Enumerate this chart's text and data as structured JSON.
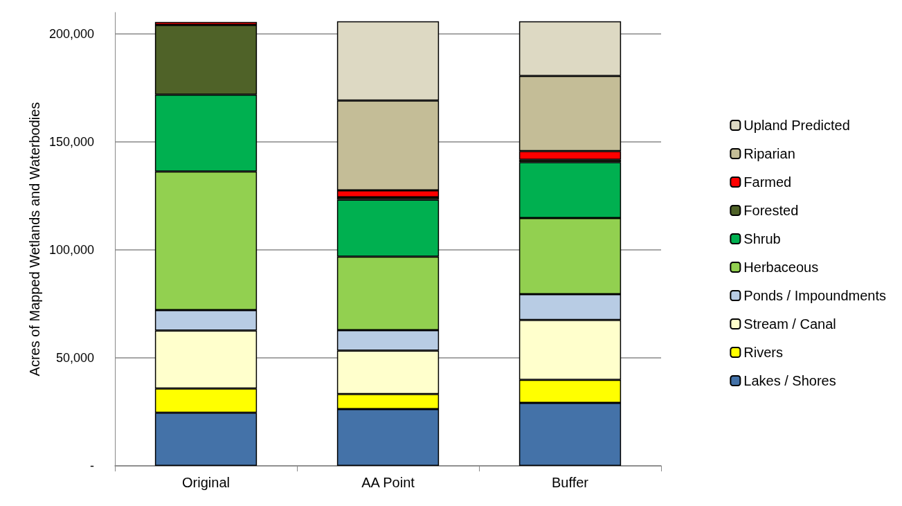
{
  "chart_data": {
    "type": "bar",
    "stacked": true,
    "ylabel": "Acres of Mapped Wetlands and Waterbodies",
    "categories": [
      "Original",
      "AA Point",
      "Buffer"
    ],
    "ylim": [
      0,
      210000
    ],
    "yticks": [
      {
        "value": 0,
        "label": "-"
      },
      {
        "value": 50000,
        "label": "50,000"
      },
      {
        "value": 100000,
        "label": "100,000"
      },
      {
        "value": 150000,
        "label": "150,000"
      },
      {
        "value": 200000,
        "label": "200,000"
      }
    ],
    "grid": "y",
    "legend": "right",
    "series": [
      {
        "name": "Lakes / Shores",
        "color": "#4472a8",
        "values": [
          24600,
          26300,
          29200
        ]
      },
      {
        "name": "Rivers",
        "color": "#ffff00",
        "values": [
          11200,
          7000,
          10600
        ]
      },
      {
        "name": "Stream / Canal",
        "color": "#ffffcc",
        "values": [
          26900,
          20100,
          27800
        ]
      },
      {
        "name": "Ponds / Impoundments",
        "color": "#b8cce4",
        "values": [
          9400,
          9400,
          11900
        ]
      },
      {
        "name": "Herbaceous",
        "color": "#92d050",
        "values": [
          64200,
          34100,
          35300
        ]
      },
      {
        "name": "Shrub",
        "color": "#00b050",
        "values": [
          35600,
          26400,
          25900
        ]
      },
      {
        "name": "Forested",
        "color": "#4f6228",
        "values": [
          32300,
          1100,
          1100
        ]
      },
      {
        "name": "Farmed",
        "color": "#ff0000",
        "values": [
          1400,
          3200,
          4000
        ]
      },
      {
        "name": "Riparian",
        "color": "#c4bd97",
        "values": [
          null,
          41600,
          34800
        ]
      },
      {
        "name": "Upland Predicted",
        "color": "#ddd9c3",
        "values": [
          null,
          36700,
          25300
        ]
      }
    ]
  }
}
